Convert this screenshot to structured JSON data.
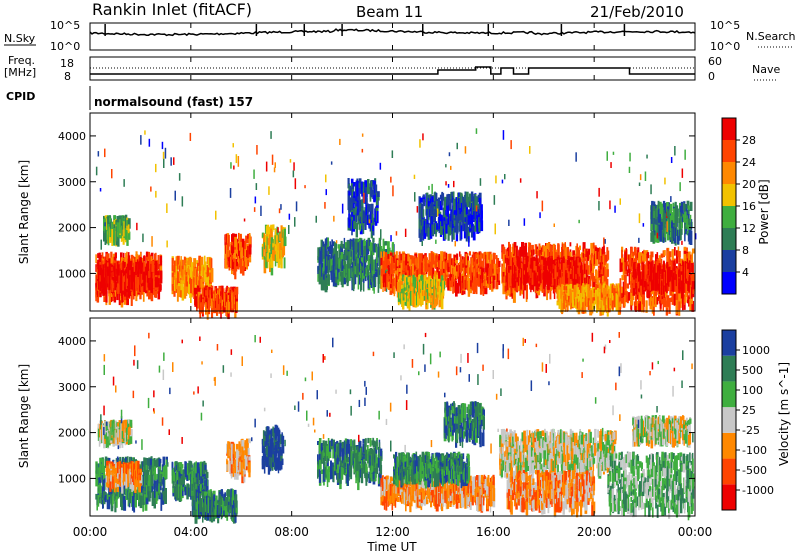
{
  "header": {
    "station": "Rankin Inlet (fitACF)",
    "beam": "Beam 11",
    "date": "21/Feb/2010"
  },
  "nsky_panel": {
    "left_label": "N.Sky",
    "right_label": "N.Search",
    "left_ticks": [
      "10^5",
      "10^0"
    ],
    "right_ticks": [
      "10^5",
      "10^0"
    ]
  },
  "freq_panel": {
    "left_label_line1": "Freq.",
    "left_label_line2": "[MHz]",
    "right_label": "Nave",
    "left_ticks": [
      "18",
      "8"
    ],
    "right_ticks": [
      "60",
      "0"
    ]
  },
  "cpid": {
    "label": "CPID",
    "text": "normalsound (fast) 157"
  },
  "x_axis": {
    "title": "Time UT",
    "ticks": [
      "00:00",
      "04:00",
      "08:00",
      "12:00",
      "16:00",
      "20:00",
      "00:00"
    ]
  },
  "colors": {
    "power_scale": [
      "#0000ff",
      "#1b3fa0",
      "#2e7d55",
      "#3fae3f",
      "#f2c200",
      "#ff8800",
      "#ff4400",
      "#ee0000"
    ],
    "velocity_scale": [
      "#1b3fa0",
      "#2e7d55",
      "#3fae3f",
      "#c8c8c8",
      "#ff8800",
      "#ff4400",
      "#ee0000"
    ]
  },
  "chart_data": [
    {
      "type": "heatmap",
      "name": "power",
      "ylabel": "Slant Range [km]",
      "yticks": [
        "1000",
        "2000",
        "3000",
        "4000"
      ],
      "colorbar_title": "Power [dB]",
      "colorbar_ticks": [
        "4",
        "8",
        "12",
        "16",
        "20",
        "24",
        "28"
      ],
      "xlim_hours": [
        0,
        24
      ],
      "ylim_km": [
        180,
        4500
      ],
      "regions": [
        {
          "t0": 0.2,
          "t1": 2.8,
          "r0": 500,
          "r1": 1400,
          "c": 6
        },
        {
          "t0": 0.3,
          "t1": 2.6,
          "r0": 700,
          "r1": 1200,
          "c": 7
        },
        {
          "t0": 3.2,
          "t1": 4.8,
          "r0": 600,
          "r1": 1300,
          "c": 5
        },
        {
          "t0": 4.1,
          "t1": 5.8,
          "r0": 250,
          "r1": 650,
          "c": 6
        },
        {
          "t0": 5.3,
          "t1": 6.3,
          "r0": 1100,
          "r1": 1800,
          "c": 6
        },
        {
          "t0": 6.8,
          "t1": 7.7,
          "r0": 1200,
          "r1": 2000,
          "c": 4
        },
        {
          "t0": 9.0,
          "t1": 12.0,
          "r0": 800,
          "r1": 1700,
          "c": 2
        },
        {
          "t0": 10.2,
          "t1": 11.4,
          "r0": 2000,
          "r1": 3000,
          "c": 1
        },
        {
          "t0": 11.5,
          "t1": 16.2,
          "r0": 700,
          "r1": 1400,
          "c": 6
        },
        {
          "t0": 12.2,
          "t1": 14.0,
          "r0": 400,
          "r1": 900,
          "c": 4
        },
        {
          "t0": 13.0,
          "t1": 15.5,
          "r0": 1900,
          "r1": 2700,
          "c": 1
        },
        {
          "t0": 16.3,
          "t1": 20.5,
          "r0": 600,
          "r1": 1600,
          "c": 6
        },
        {
          "t0": 16.5,
          "t1": 19.5,
          "r0": 800,
          "r1": 1300,
          "c": 7
        },
        {
          "t0": 18.5,
          "t1": 21.0,
          "r0": 300,
          "r1": 700,
          "c": 5
        },
        {
          "t0": 21.0,
          "t1": 23.9,
          "r0": 300,
          "r1": 1500,
          "c": 6
        },
        {
          "t0": 21.5,
          "t1": 23.9,
          "r0": 700,
          "r1": 1200,
          "c": 7
        },
        {
          "t0": 0.5,
          "t1": 1.5,
          "r0": 1800,
          "r1": 2200,
          "c": 3
        },
        {
          "t0": 22.2,
          "t1": 23.8,
          "r0": 1800,
          "r1": 2500,
          "c": 2
        }
      ]
    },
    {
      "type": "heatmap",
      "name": "velocity",
      "ylabel": "Slant Range [km]",
      "yticks": [
        "1000",
        "2000",
        "3000",
        "4000"
      ],
      "colorbar_title": "Velocity [m s^-1]",
      "colorbar_ticks": [
        "1000",
        "500",
        "100",
        "25",
        "-25",
        "-100",
        "-500",
        "-1000"
      ],
      "xlim_hours": [
        0,
        24
      ],
      "ylim_km": [
        180,
        4500
      ],
      "regions": [
        {
          "t0": 0.2,
          "t1": 3.0,
          "r0": 500,
          "r1": 1400,
          "c": 1
        },
        {
          "t0": 0.6,
          "t1": 2.0,
          "r0": 900,
          "r1": 1300,
          "c": 4
        },
        {
          "t0": 0.3,
          "t1": 1.6,
          "r0": 1900,
          "r1": 2200,
          "c": 3
        },
        {
          "t0": 3.2,
          "t1": 4.6,
          "r0": 700,
          "r1": 1300,
          "c": 1
        },
        {
          "t0": 4.0,
          "t1": 5.8,
          "r0": 250,
          "r1": 700,
          "c": 1
        },
        {
          "t0": 5.4,
          "t1": 6.3,
          "r0": 1100,
          "r1": 1800,
          "c": 4
        },
        {
          "t0": 6.8,
          "t1": 7.6,
          "r0": 1300,
          "r1": 2100,
          "c": 0
        },
        {
          "t0": 9.0,
          "t1": 11.5,
          "r0": 1000,
          "r1": 1800,
          "c": 1
        },
        {
          "t0": 11.5,
          "t1": 16.0,
          "r0": 500,
          "r1": 1000,
          "c": 4
        },
        {
          "t0": 12.0,
          "t1": 15.0,
          "r0": 1000,
          "r1": 1500,
          "c": 1
        },
        {
          "t0": 14.0,
          "t1": 15.6,
          "r0": 1900,
          "r1": 2600,
          "c": 1
        },
        {
          "t0": 16.2,
          "t1": 20.8,
          "r0": 1200,
          "r1": 2000,
          "c": 3
        },
        {
          "t0": 16.5,
          "t1": 20.0,
          "r0": 400,
          "r1": 1100,
          "c": 4
        },
        {
          "t0": 20.5,
          "t1": 23.9,
          "r0": 300,
          "r1": 1500,
          "c": 2
        },
        {
          "t0": 21.5,
          "t1": 23.8,
          "r0": 1900,
          "r1": 2300,
          "c": 3
        }
      ]
    }
  ]
}
